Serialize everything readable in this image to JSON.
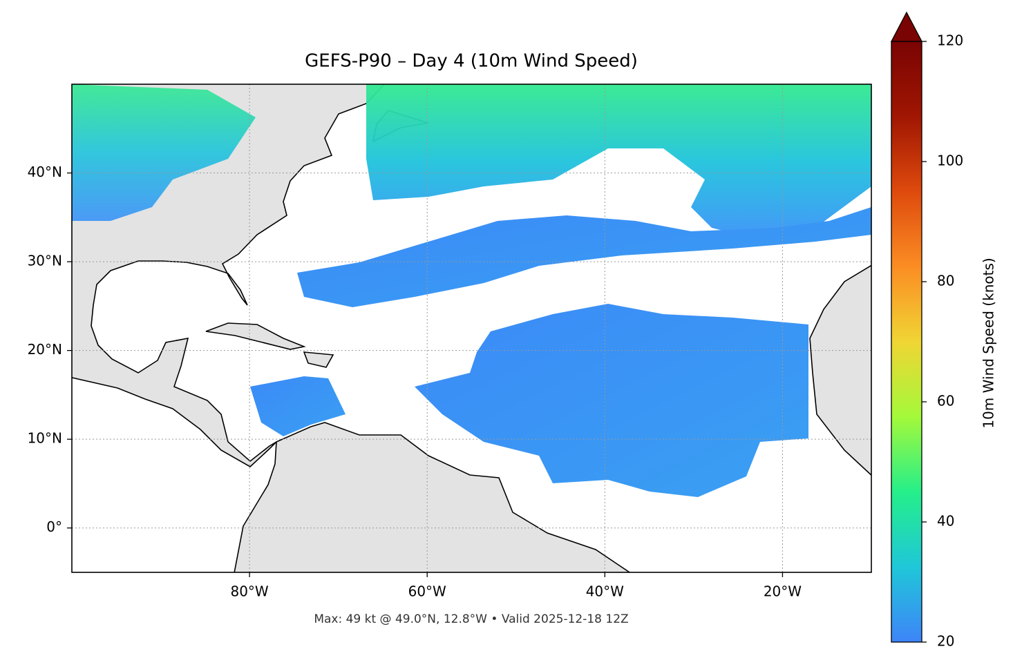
{
  "chart_data": {
    "type": "map",
    "title": "GEFS-P90 – Day 4 (10m Wind Speed)",
    "caption": "Max: 49 kt @ 49.0°N, 12.8°W • Valid 2025-12-18 12Z",
    "xlim": [
      -100,
      -10
    ],
    "ylim": [
      -5,
      50
    ],
    "xticks": [
      {
        "value": -80,
        "label": "80°W"
      },
      {
        "value": -60,
        "label": "60°W"
      },
      {
        "value": -40,
        "label": "40°W"
      },
      {
        "value": -20,
        "label": "20°W"
      }
    ],
    "yticks": [
      {
        "value": 0,
        "label": "0°"
      },
      {
        "value": 10,
        "label": "10°N"
      },
      {
        "value": 20,
        "label": "20°N"
      },
      {
        "value": 30,
        "label": "30°N"
      },
      {
        "value": 40,
        "label": "40°N"
      }
    ],
    "grid": true,
    "colorbar_label": "10m Wind Speed (knots)",
    "clim": [
      20,
      120
    ],
    "cticks": [
      20,
      40,
      60,
      80,
      100,
      120
    ],
    "colormap": [
      "#3e84f9",
      "#1fc7d8",
      "#25ef8a",
      "#a4f93a",
      "#f0d534",
      "#fb8d23",
      "#de4a0d",
      "#a01602",
      "#7a0403"
    ]
  }
}
